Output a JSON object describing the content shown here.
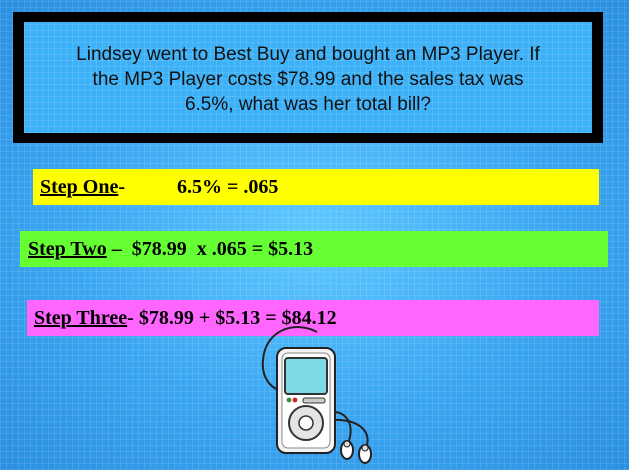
{
  "question": {
    "line1": "Lindsey went to Best Buy and bought an MP3 Player.  If",
    "line2": "the MP3 Player costs $78.99 and the sales tax was",
    "line3": "6.5%, what was her total bill?"
  },
  "steps": [
    {
      "label": "Step One",
      "separator": "-",
      "text": "6.5% = .065"
    },
    {
      "label": "Step Two",
      "separator": " –  ",
      "text": "$78.99  x .065 = $5.13"
    },
    {
      "label": "Step Three",
      "separator": "- ",
      "text": "$78.99 + $5.13 = $84.12"
    }
  ],
  "colors": {
    "step_one_bg": "#ffff00",
    "step_two_bg": "#66ff33",
    "step_three_bg": "#ff66ff",
    "background": "#3aa6f2"
  },
  "illustration": {
    "icon": "mp3-player-icon"
  }
}
